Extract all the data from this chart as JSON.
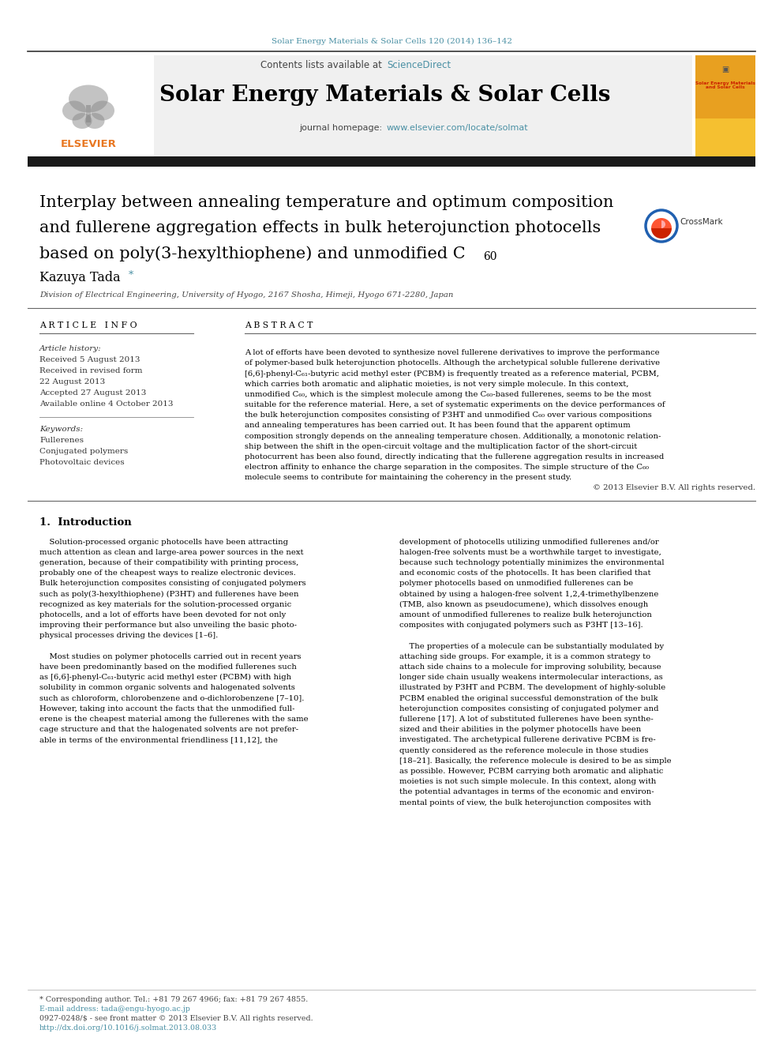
{
  "journal_ref": "Solar Energy Materials & Solar Cells 120 (2014) 136–142",
  "journal_title": "Solar Energy Materials & Solar Cells",
  "journal_homepage": "www.elsevier.com/locate/solmat",
  "paper_title_line1": "Interplay between annealing temperature and optimum composition",
  "paper_title_line2": "and fullerene aggregation effects in bulk heterojunction photocells",
  "paper_title_line3": "based on poly(3-hexylthiophene) and unmodified C",
  "paper_title_sub": "60",
  "author": "Kazuya Tada",
  "affiliation": "Division of Electrical Engineering, University of Hyogo, 2167 Shosha, Himeji, Hyogo 671-2280, Japan",
  "article_info_header": "A R T I C L E   I N F O",
  "abstract_header": "A B S T R A C T",
  "received_1": "Received 5 August 2013",
  "received_2": "Received in revised form",
  "received_2b": "22 August 2013",
  "accepted": "Accepted 27 August 2013",
  "available": "Available online 4 October 2013",
  "abstract_lines": [
    "A lot of efforts have been devoted to synthesize novel fullerene derivatives to improve the performance",
    "of polymer-based bulk heterojunction photocells. Although the archetypical soluble fullerene derivative",
    "[6,6]-phenyl-C₆₁-butyric acid methyl ester (PCBM) is frequently treated as a reference material, PCBM,",
    "which carries both aromatic and aliphatic moieties, is not very simple molecule. In this context,",
    "unmodified C₆₀, which is the simplest molecule among the C₆₀-based fullerenes, seems to be the most",
    "suitable for the reference material. Here, a set of systematic experiments on the device performances of",
    "the bulk heterojunction composites consisting of P3HT and unmodified C₆₀ over various compositions",
    "and annealing temperatures has been carried out. It has been found that the apparent optimum",
    "composition strongly depends on the annealing temperature chosen. Additionally, a monotonic relation-",
    "ship between the shift in the open-circuit voltage and the multiplication factor of the short-circuit",
    "photocurrent has been also found, directly indicating that the fullerene aggregation results in increased",
    "electron affinity to enhance the charge separation in the composites. The simple structure of the C₆₀",
    "molecule seems to contribute for maintaining the coherency in the present study."
  ],
  "intro_col1_lines": [
    "    Solution-processed organic photocells have been attracting",
    "much attention as clean and large-area power sources in the next",
    "generation, because of their compatibility with printing process,",
    "probably one of the cheapest ways to realize electronic devices.",
    "Bulk heterojunction composites consisting of conjugated polymers",
    "such as poly(3-hexylthiophene) (P3HT) and fullerenes have been",
    "recognized as key materials for the solution-processed organic",
    "photocells, and a lot of efforts have been devoted for not only",
    "improving their performance but also unveiling the basic photo-",
    "physical processes driving the devices [1–6].",
    "",
    "    Most studies on polymer photocells carried out in recent years",
    "have been predominantly based on the modified fullerenes such",
    "as [6,6]-phenyl-C₆₁-butyric acid methyl ester (PCBM) with high",
    "solubility in common organic solvents and halogenated solvents",
    "such as chloroform, chlorobenzene and o-dichlorobenzene [7–10].",
    "However, taking into account the facts that the unmodified full-",
    "erene is the cheapest material among the fullerenes with the same",
    "cage structure and that the halogenated solvents are not prefer-",
    "able in terms of the environmental friendliness [11,12], the"
  ],
  "intro_col2_lines": [
    "development of photocells utilizing unmodified fullerenes and/or",
    "halogen-free solvents must be a worthwhile target to investigate,",
    "because such technology potentially minimizes the environmental",
    "and economic costs of the photocells. It has been clarified that",
    "polymer photocells based on unmodified fullerenes can be",
    "obtained by using a halogen-free solvent 1,2,4-trimethylbenzene",
    "(TMB, also known as pseudocumene), which dissolves enough",
    "amount of unmodified fullerenes to realize bulk heterojunction",
    "composites with conjugated polymers such as P3HT [13–16].",
    "",
    "    The properties of a molecule can be substantially modulated by",
    "attaching side groups. For example, it is a common strategy to",
    "attach side chains to a molecule for improving solubility, because",
    "longer side chain usually weakens intermolecular interactions, as",
    "illustrated by P3HT and PCBM. The development of highly-soluble",
    "PCBM enabled the original successful demonstration of the bulk",
    "heterojunction composites consisting of conjugated polymer and",
    "fullerene [17]. A lot of substituted fullerenes have been synthe-",
    "sized and their abilities in the polymer photocells have been",
    "investigated. The archetypical fullerene derivative PCBM is fre-",
    "quently considered as the reference molecule in those studies",
    "[18–21]. Basically, the reference molecule is desired to be as simple",
    "as possible. However, PCBM carrying both aromatic and aliphatic",
    "moieties is not such simple molecule. In this context, along with",
    "the potential advantages in terms of the economic and environ-",
    "mental points of view, the bulk heterojunction composites with"
  ],
  "footer_lines": [
    "* Corresponding author. Tel.: +81 79 267 4966; fax: +81 79 267 4855.",
    "E-mail address: tada@engu-hyogo.ac.jp",
    "0927-0248/$ - see front matter © 2013 Elsevier B.V. All rights reserved.",
    "http://dx.doi.org/10.1016/j.solmat.2013.08.033"
  ],
  "bg_color": "#ffffff",
  "header_bg": "#f0f0f0",
  "black_bar_color": "#1a1a1a",
  "link_color": "#4a90a4",
  "elsevier_orange": "#e87722",
  "cover_yellow": "#f5c030",
  "cover_orange": "#e8a020"
}
